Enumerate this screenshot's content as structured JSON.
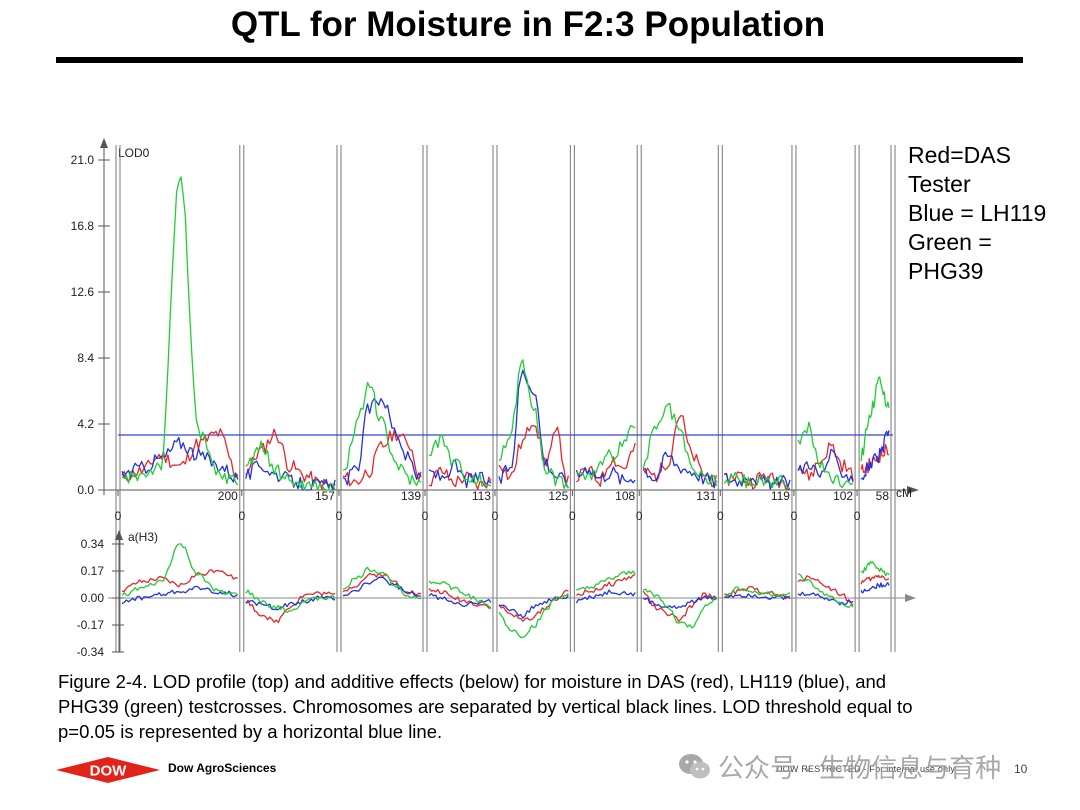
{
  "slide": {
    "title": "QTL for Moisture in F2:3 Population"
  },
  "legend": {
    "lines": [
      "Red=DAS",
      "Tester",
      "Blue = LH119",
      "Green =",
      "PHG39"
    ]
  },
  "caption": "Figure 2-4. LOD profile (top) and additive effects (below) for moisture in DAS (red), LH119 (blue), and PHG39 (green) testcrosses. Chromosomes are separated by vertical black lines. LOD threshold equal to p=0.05 is represented by a horizontal blue line.",
  "footer": {
    "logo_text": "DOW",
    "company": "Dow AgroSciences",
    "restricted": "DOW RESTRICTED - For internal use only",
    "page": "10"
  },
  "watermark": "公众号 · 生物信息与育种",
  "colors": {
    "das": "#e8262a",
    "lh119": "#2233dd",
    "phg39": "#22cc33",
    "threshold": "#3344dd",
    "logo_red": "#e2231a"
  },
  "chart_data": [
    {
      "type": "line",
      "title": "LOD profile",
      "ylabel": "LOD0",
      "xlabel": "cM",
      "ylim": [
        0,
        21.0
      ],
      "yticks": [
        0.0,
        4.2,
        8.4,
        12.6,
        16.8,
        21.0
      ],
      "ytick_labels": [
        "0.0",
        "4.2",
        "8.4",
        "12.6",
        "16.8",
        "21.0"
      ],
      "threshold": 3.5,
      "chromosomes": [
        {
          "length_cM": 200,
          "start_label": "0",
          "end_label": "200"
        },
        {
          "length_cM": 157,
          "start_label": "0",
          "end_label": "157"
        },
        {
          "length_cM": 139,
          "start_label": "0",
          "end_label": "139"
        },
        {
          "length_cM": 113,
          "start_label": "0",
          "end_label": "113"
        },
        {
          "length_cM": 125,
          "start_label": "0",
          "end_label": "125"
        },
        {
          "length_cM": 108,
          "start_label": "0",
          "end_label": "108"
        },
        {
          "length_cM": 131,
          "start_label": "0",
          "end_label": "131"
        },
        {
          "length_cM": 119,
          "start_label": "0",
          "end_label": "119"
        },
        {
          "length_cM": 102,
          "start_label": "0",
          "end_label": "102"
        },
        {
          "length_cM": 58,
          "start_label": "0",
          "end_label": "58"
        }
      ],
      "series": [
        {
          "name": "DAS",
          "color": "#e8262a",
          "values": [
            [
              0.8,
              1.2,
              2.2,
              1.5,
              3.0,
              3.6,
              1.0
            ],
            [
              1.2,
              2.5,
              3.6,
              1.5,
              0.9,
              0.4,
              0.2
            ],
            [
              0.8,
              0.5,
              1.2,
              2.8,
              3.6,
              3.0,
              0.8
            ],
            [
              0.6,
              1.2,
              0.5,
              0.8,
              0.3,
              0.6
            ],
            [
              1.8,
              0.8,
              3.0,
              4.5,
              1.8,
              3.6,
              0.5
            ],
            [
              0.8,
              1.2,
              0.6,
              2.0,
              1.4,
              2.6
            ],
            [
              1.2,
              0.9,
              1.8,
              4.8,
              2.2,
              1.0,
              0.5
            ],
            [
              0.6,
              1.0,
              0.5,
              0.9,
              0.6,
              0.5
            ],
            [
              1.5,
              0.9,
              1.8,
              2.8,
              1.6,
              1.0
            ],
            [
              1.2,
              1.6,
              2.2,
              2.6
            ]
          ]
        },
        {
          "name": "LH119",
          "color": "#2233dd",
          "values": [
            [
              1.0,
              1.4,
              2.0,
              3.0,
              2.2,
              1.6,
              0.8
            ],
            [
              0.9,
              1.6,
              1.0,
              0.6,
              0.3,
              0.3,
              0.2
            ],
            [
              0.6,
              1.2,
              5.2,
              5.9,
              3.8,
              2.0,
              0.6
            ],
            [
              1.2,
              0.8,
              1.5,
              0.6,
              0.8,
              0.5
            ],
            [
              0.6,
              1.5,
              7.5,
              6.5,
              1.8,
              0.9,
              0.5
            ],
            [
              0.9,
              1.5,
              0.8,
              1.2,
              0.6,
              0.9
            ],
            [
              1.4,
              0.8,
              2.2,
              1.5,
              1.2,
              0.8,
              0.5
            ],
            [
              0.8,
              0.6,
              1.0,
              0.5,
              0.4,
              0.6
            ],
            [
              1.2,
              1.8,
              0.9,
              2.2,
              1.2,
              0.8
            ],
            [
              0.8,
              1.6,
              2.2,
              3.6
            ]
          ]
        },
        {
          "name": "PHG39",
          "color": "#22cc33",
          "values": [
            [
              0.6,
              1.0,
              1.6,
              20.0,
              3.5,
              1.0,
              0.6
            ],
            [
              1.6,
              2.8,
              1.2,
              0.6,
              0.3,
              0.2,
              0.1
            ],
            [
              1.0,
              4.0,
              6.8,
              4.2,
              1.8,
              0.8,
              0.4
            ],
            [
              2.6,
              3.2,
              1.8,
              1.0,
              0.6,
              0.4
            ],
            [
              2.0,
              3.5,
              8.2,
              5.5,
              1.2,
              0.7,
              0.4
            ],
            [
              1.0,
              0.8,
              1.5,
              2.2,
              3.0,
              4.0
            ],
            [
              1.6,
              3.8,
              5.2,
              3.8,
              1.2,
              0.8,
              0.5
            ],
            [
              0.5,
              0.8,
              0.4,
              0.6,
              0.5,
              0.5
            ],
            [
              3.0,
              4.0,
              1.5,
              0.8,
              0.5,
              0.6
            ],
            [
              2.2,
              5.0,
              6.8,
              5.4
            ]
          ]
        }
      ]
    },
    {
      "type": "line",
      "title": "Additive effects",
      "ylabel": "a(H3)",
      "ylim": [
        -0.34,
        0.34
      ],
      "yticks": [
        -0.34,
        -0.17,
        0.0,
        0.17,
        0.34
      ],
      "ytick_labels": [
        "-0.34",
        "-0.17",
        "0.00",
        "0.17",
        "0.34"
      ],
      "series": [
        {
          "name": "DAS",
          "color": "#e8262a",
          "values": [
            [
              0.05,
              0.1,
              0.12,
              0.08,
              0.15,
              0.18,
              0.12
            ],
            [
              -0.02,
              -0.1,
              -0.15,
              -0.05,
              0.02,
              0.03,
              0.02
            ],
            [
              0.05,
              0.08,
              0.14,
              0.15,
              0.1,
              0.04,
              0.02
            ],
            [
              0.05,
              0.04,
              0.0,
              -0.02,
              -0.04,
              -0.05
            ],
            [
              -0.05,
              -0.1,
              -0.14,
              -0.12,
              -0.06,
              0.0,
              0.04
            ],
            [
              0.02,
              0.04,
              0.06,
              0.09,
              0.12,
              0.14
            ],
            [
              0.04,
              -0.06,
              -0.1,
              -0.14,
              -0.05,
              0.02,
              0.0
            ],
            [
              0.02,
              0.04,
              0.06,
              0.04,
              0.02,
              0.0
            ],
            [
              0.1,
              0.14,
              0.1,
              0.06,
              0.02,
              -0.04
            ],
            [
              0.1,
              0.12,
              0.14,
              0.12
            ]
          ]
        },
        {
          "name": "LH119",
          "color": "#2233dd",
          "values": [
            [
              -0.03,
              0.0,
              0.02,
              0.04,
              0.06,
              0.04,
              0.02
            ],
            [
              -0.02,
              -0.04,
              -0.06,
              -0.04,
              -0.02,
              0.0,
              0.0
            ],
            [
              0.02,
              0.05,
              0.1,
              0.12,
              0.08,
              0.03,
              0.01
            ],
            [
              0.02,
              0.0,
              -0.02,
              -0.04,
              -0.03,
              -0.02
            ],
            [
              -0.04,
              -0.08,
              -0.12,
              -0.06,
              -0.02,
              0.0,
              0.01
            ],
            [
              -0.02,
              0.0,
              0.02,
              0.04,
              0.03,
              0.02
            ],
            [
              0.0,
              -0.04,
              -0.06,
              -0.05,
              -0.02,
              0.0,
              0.0
            ],
            [
              0.01,
              0.02,
              0.02,
              0.01,
              0.0,
              0.0
            ],
            [
              0.02,
              0.03,
              0.01,
              -0.01,
              -0.03,
              -0.02
            ],
            [
              0.04,
              0.06,
              0.08,
              0.09
            ]
          ]
        },
        {
          "name": "PHG39",
          "color": "#22cc33",
          "values": [
            [
              0.02,
              0.06,
              0.1,
              0.34,
              0.14,
              0.04,
              0.02
            ],
            [
              0.04,
              -0.02,
              -0.06,
              -0.08,
              -0.02,
              0.0,
              0.0
            ],
            [
              0.06,
              0.12,
              0.18,
              0.16,
              0.08,
              0.02,
              0.0
            ],
            [
              0.1,
              0.1,
              0.06,
              0.02,
              -0.02,
              -0.06
            ],
            [
              -0.1,
              -0.2,
              -0.24,
              -0.18,
              -0.08,
              0.0,
              0.02
            ],
            [
              0.04,
              0.06,
              0.09,
              0.12,
              0.15,
              0.16
            ],
            [
              0.06,
              0.02,
              -0.06,
              -0.16,
              -0.18,
              -0.06,
              0.0
            ],
            [
              0.02,
              0.06,
              0.04,
              0.03,
              0.02,
              0.02
            ],
            [
              0.14,
              0.1,
              0.04,
              0.0,
              -0.04,
              -0.06
            ],
            [
              0.16,
              0.22,
              0.18,
              0.14
            ]
          ]
        }
      ]
    }
  ]
}
